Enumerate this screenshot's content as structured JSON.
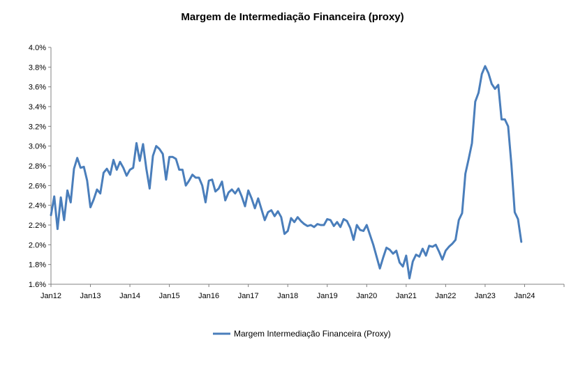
{
  "chart_data": {
    "type": "line",
    "title": "Margem de Intermediação Financeira (proxy)",
    "xlabel": "",
    "ylabel": "",
    "ylim": [
      0.016,
      0.04
    ],
    "y_ticks": [
      0.016,
      0.018,
      0.02,
      0.022,
      0.024,
      0.026,
      0.028,
      0.03,
      0.032,
      0.034,
      0.036,
      0.038,
      0.04
    ],
    "y_tick_labels": [
      "1.6%",
      "1.8%",
      "2.0%",
      "2.2%",
      "2.4%",
      "2.6%",
      "2.8%",
      "3.0%",
      "3.2%",
      "3.4%",
      "3.6%",
      "3.8%",
      "4.0%"
    ],
    "x_tick_labels": [
      "Jan12",
      "Jan13",
      "Jan14",
      "Jan15",
      "Jan16",
      "Jan17",
      "Jan18",
      "Jan19",
      "Jan20",
      "Jan21",
      "Jan22",
      "Jan23",
      "Jan24"
    ],
    "grid": false,
    "legend_position": "bottom",
    "color": "#4a7ebb",
    "series": [
      {
        "name": "Margem Intermediação Financeira (Proxy)",
        "start": "2012-01",
        "frequency": "monthly",
        "values": [
          0.023,
          0.0249,
          0.0216,
          0.0248,
          0.0225,
          0.0255,
          0.0243,
          0.0277,
          0.0288,
          0.0278,
          0.0279,
          0.0265,
          0.0238,
          0.0246,
          0.0256,
          0.0252,
          0.0273,
          0.0277,
          0.0271,
          0.0286,
          0.0276,
          0.0284,
          0.0278,
          0.027,
          0.0276,
          0.0278,
          0.0303,
          0.0285,
          0.0302,
          0.0277,
          0.0257,
          0.029,
          0.03,
          0.0297,
          0.0292,
          0.0266,
          0.0289,
          0.0289,
          0.0287,
          0.0276,
          0.0276,
          0.026,
          0.0265,
          0.0271,
          0.0268,
          0.0268,
          0.026,
          0.0243,
          0.0265,
          0.0266,
          0.0254,
          0.0257,
          0.0264,
          0.0245,
          0.0253,
          0.0256,
          0.0252,
          0.0257,
          0.0249,
          0.0239,
          0.0255,
          0.0247,
          0.0237,
          0.0247,
          0.0236,
          0.0225,
          0.0233,
          0.0235,
          0.0229,
          0.0234,
          0.0228,
          0.0211,
          0.0214,
          0.0227,
          0.0223,
          0.0228,
          0.0224,
          0.0221,
          0.0219,
          0.022,
          0.0218,
          0.0221,
          0.022,
          0.022,
          0.0226,
          0.0225,
          0.0219,
          0.0223,
          0.0218,
          0.0226,
          0.0224,
          0.0217,
          0.0205,
          0.022,
          0.0215,
          0.0214,
          0.022,
          0.021,
          0.02,
          0.0188,
          0.0176,
          0.0187,
          0.0197,
          0.0195,
          0.0191,
          0.0194,
          0.0182,
          0.0178,
          0.0189,
          0.0166,
          0.0183,
          0.019,
          0.0188,
          0.0196,
          0.0189,
          0.0199,
          0.0198,
          0.02,
          0.0193,
          0.0185,
          0.0194,
          0.0198,
          0.0201,
          0.0205,
          0.0225,
          0.0232,
          0.0272,
          0.0287,
          0.0303,
          0.0345,
          0.0354,
          0.0373,
          0.0381,
          0.0374,
          0.0363,
          0.0358,
          0.0362,
          0.0327,
          0.0327,
          0.032,
          0.0281,
          0.0233,
          0.0226,
          0.0203
        ]
      }
    ]
  }
}
